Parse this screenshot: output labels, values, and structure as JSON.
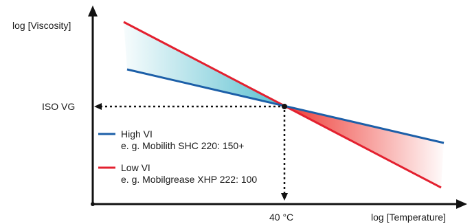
{
  "labels": {
    "y_axis": "log [Viscosity]",
    "x_axis": "log [Temperature]",
    "iso_vg": "ISO VG",
    "temp_40": "40 °C"
  },
  "legend": [
    {
      "title": "High VI",
      "example": "e. g. Mobilith SHC 220: 150+",
      "color": "#1c5fa8"
    },
    {
      "title": "Low VI",
      "example": "e. g. Mobilgrease XHP 222: 100",
      "color": "#e3202f"
    }
  ],
  "colors": {
    "axis": "#111111",
    "high_vi_fill": "#5bbfd0",
    "low_vi_fill": "#ee3a34"
  }
}
